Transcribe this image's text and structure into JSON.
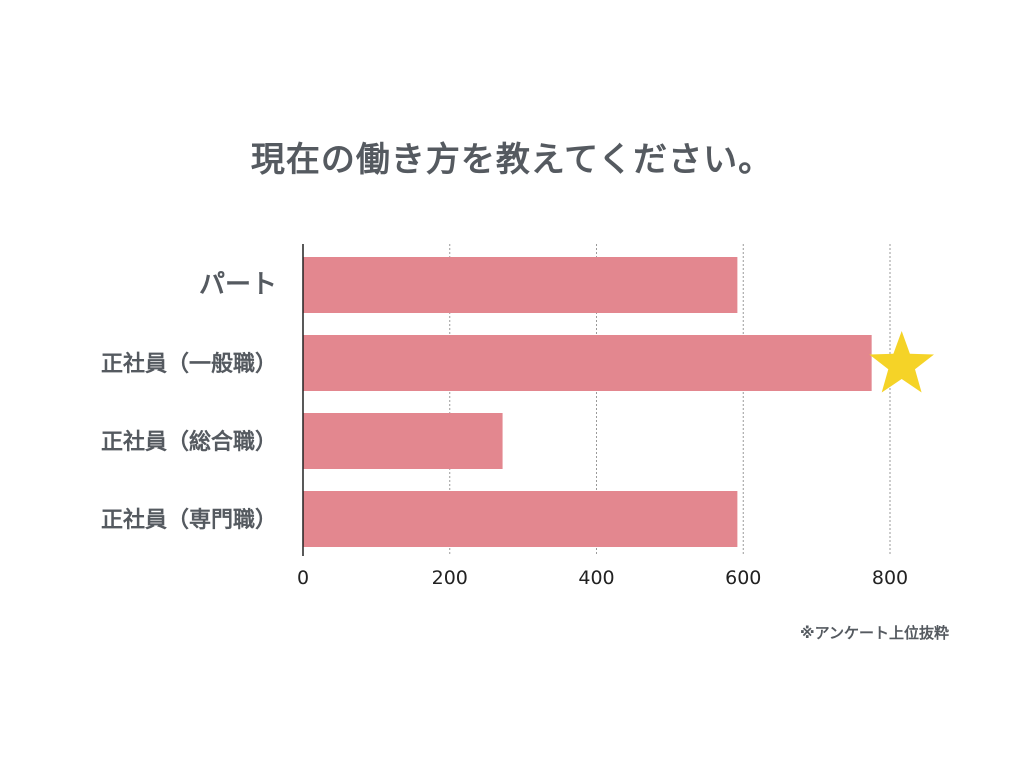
{
  "chart_data": {
    "type": "bar",
    "orientation": "horizontal",
    "title": "現在の働き方を教えてください。",
    "categories": [
      "パート",
      "正社員（一般職）",
      "正社員（総合職）",
      "正社員（専門職）"
    ],
    "values": [
      592,
      775,
      272,
      592
    ],
    "xlim": [
      0,
      800
    ],
    "xticks": [
      0,
      200,
      400,
      600,
      800
    ],
    "grid": true,
    "bar_color": "#e3878f",
    "highlight": {
      "category": "正社員（一般職）",
      "marker": "star-icon",
      "color": "#f5d327"
    }
  },
  "footnote": "※アンケート上位抜粋"
}
